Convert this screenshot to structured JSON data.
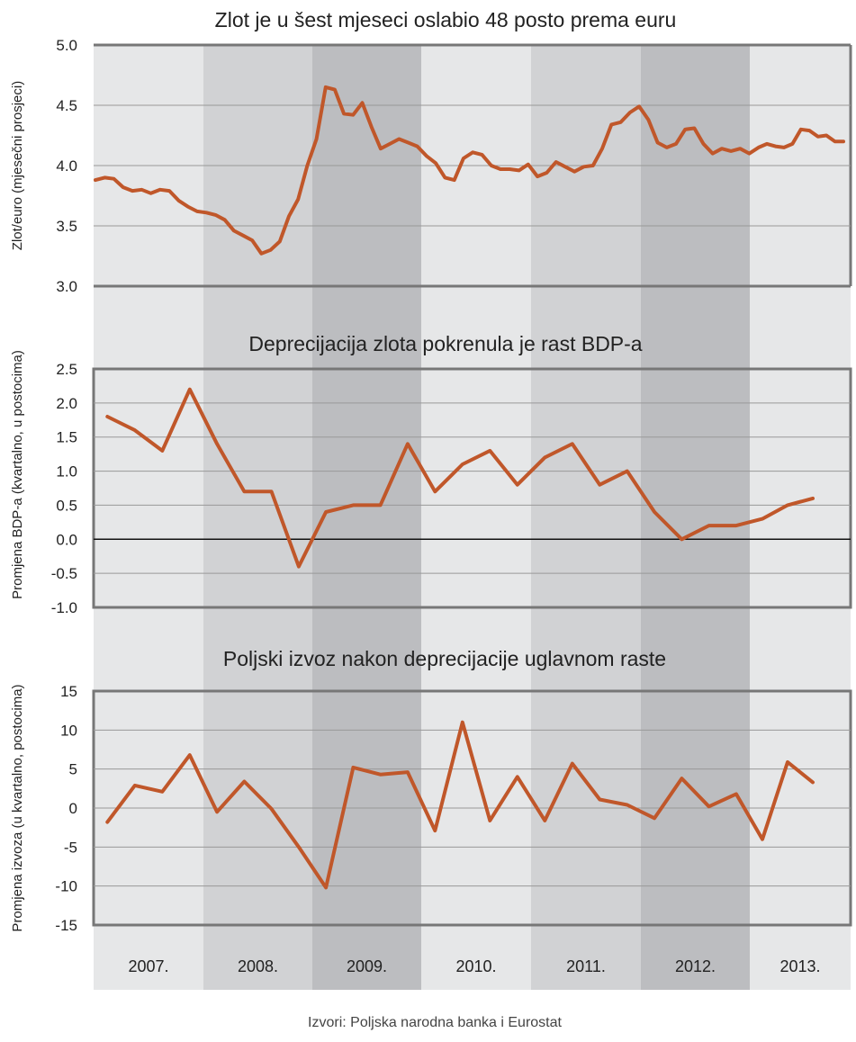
{
  "source": "Izvori: Poljska narodna banka i Eurostat",
  "years": [
    "2007.",
    "2008.",
    "2009.",
    "2010.",
    "2011.",
    "2012.",
    "2013."
  ],
  "colors": {
    "line": "#c0572a",
    "band_light": "#e6e7e8",
    "band_mid": "#d1d2d4",
    "band_dark": "#bcbdc0",
    "frame": "#777777",
    "grid": "#999999",
    "zero": "#111111"
  },
  "chart_data": [
    {
      "type": "line",
      "title": "Zlot je u šest mjeseci oslabio 48 posto prema euru",
      "ylabel": "Zlot/euro (mjesečni prosjeci)",
      "ylim": [
        3.0,
        5.0
      ],
      "yticks": [
        "5.0",
        "4.5",
        "4.0",
        "3.5",
        "3.0"
      ],
      "frequency": "monthly",
      "x_start": 2007.0,
      "values": [
        3.88,
        3.9,
        3.89,
        3.82,
        3.79,
        3.8,
        3.77,
        3.8,
        3.79,
        3.71,
        3.66,
        3.62,
        3.61,
        3.59,
        3.55,
        3.46,
        3.42,
        3.38,
        3.27,
        3.3,
        3.37,
        3.58,
        3.72,
        4.0,
        4.22,
        4.65,
        4.63,
        4.43,
        4.42,
        4.52,
        4.32,
        4.14,
        4.18,
        4.22,
        4.19,
        4.16,
        4.08,
        4.02,
        3.9,
        3.88,
        4.06,
        4.11,
        4.09,
        4.0,
        3.97,
        3.97,
        3.96,
        4.01,
        3.91,
        3.94,
        4.03,
        3.99,
        3.95,
        3.99,
        4.0,
        4.14,
        4.34,
        4.36,
        4.44,
        4.49,
        4.38,
        4.19,
        4.15,
        4.18,
        4.3,
        4.31,
        4.18,
        4.1,
        4.14,
        4.12,
        4.14,
        4.1,
        4.15,
        4.18,
        4.16,
        4.15,
        4.18,
        4.3,
        4.29,
        4.24,
        4.25,
        4.2,
        4.2
      ]
    },
    {
      "type": "line",
      "title": "Deprecijacija zlota pokrenula je rast BDP-a",
      "ylabel": "Promjena BDP-a (kvartalno, u postocima)",
      "ylim": [
        -1.0,
        2.5
      ],
      "yticks": [
        "2.5",
        "2.0",
        "1.5",
        "1.0",
        "0.5",
        "0.0",
        "-0.5",
        "-1.0"
      ],
      "frequency": "quarterly",
      "x_start": 2007.0,
      "values": [
        1.8,
        1.6,
        1.3,
        2.2,
        1.4,
        0.7,
        0.7,
        -0.4,
        0.4,
        0.5,
        0.5,
        1.4,
        0.7,
        1.1,
        1.3,
        0.8,
        1.2,
        1.4,
        0.8,
        1.0,
        0.4,
        0.0,
        0.2,
        0.2,
        0.3,
        0.5,
        0.6
      ]
    },
    {
      "type": "line",
      "title": "Poljski izvoz nakon deprecijacije uglavnom raste",
      "ylabel": "Promjena izvoza (u kvartalno, postocima)",
      "ylim": [
        -15,
        15
      ],
      "yticks": [
        "15",
        "10",
        "5",
        "0",
        "-5",
        "-10",
        "-15"
      ],
      "frequency": "quarterly",
      "x_start": 2007.0,
      "values": [
        -1.8,
        2.9,
        2.1,
        6.8,
        -0.5,
        3.4,
        -0.1,
        -5.0,
        -10.2,
        5.2,
        4.3,
        4.6,
        -2.9,
        11.0,
        -1.6,
        4.0,
        -1.6,
        5.7,
        1.1,
        0.4,
        -1.3,
        3.8,
        0.2,
        1.8,
        -4.0,
        5.9,
        3.3
      ]
    }
  ]
}
